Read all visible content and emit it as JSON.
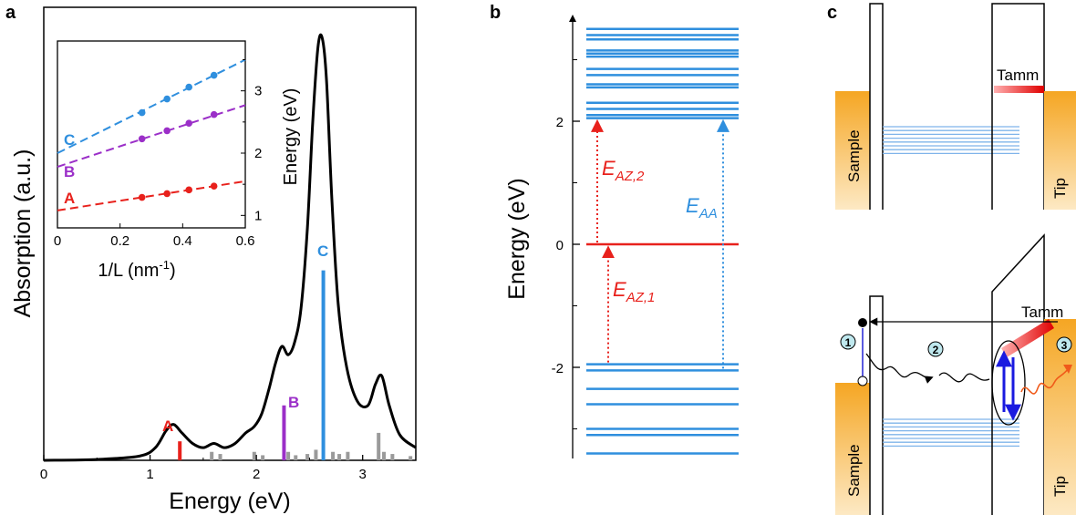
{
  "panels": {
    "a": "a",
    "b": "b",
    "c": "c"
  },
  "chart_data": [
    {
      "type": "line",
      "id": "absorption",
      "xlabel": "Energy (eV)",
      "ylabel": "Absorption (a.u.)",
      "xlim": [
        0,
        3.5
      ],
      "ylim": [
        0,
        1
      ],
      "xticks": [
        "0",
        "1",
        "2",
        "3"
      ],
      "spectrum": {
        "x": [
          0,
          0.5,
          0.9,
          1.05,
          1.15,
          1.22,
          1.3,
          1.4,
          1.5,
          1.6,
          1.7,
          1.8,
          1.9,
          1.98,
          2.05,
          2.12,
          2.18,
          2.24,
          2.3,
          2.36,
          2.42,
          2.48,
          2.53,
          2.58,
          2.62,
          2.66,
          2.71,
          2.77,
          2.85,
          2.95,
          3.05,
          3.12,
          3.18,
          3.25,
          3.35,
          3.5
        ],
        "y": [
          0,
          0.002,
          0.01,
          0.03,
          0.07,
          0.085,
          0.065,
          0.04,
          0.03,
          0.04,
          0.03,
          0.04,
          0.065,
          0.08,
          0.11,
          0.17,
          0.23,
          0.27,
          0.25,
          0.28,
          0.36,
          0.55,
          0.8,
          0.98,
          1.0,
          0.9,
          0.62,
          0.37,
          0.22,
          0.14,
          0.13,
          0.18,
          0.2,
          0.13,
          0.06,
          0.03
        ]
      },
      "sticks": [
        {
          "label": "A",
          "x": 1.28,
          "h": 0.045,
          "color": "#e8211c"
        },
        {
          "label": "B",
          "x": 2.26,
          "h": 0.13,
          "color": "#9b2fc8"
        },
        {
          "label": "C",
          "x": 2.63,
          "h": 0.45,
          "color": "#2f8fde"
        }
      ],
      "gray_sticks": [
        [
          1.58,
          0.02
        ],
        [
          1.66,
          0.015
        ],
        [
          1.98,
          0.02
        ],
        [
          2.06,
          0.012
        ],
        [
          2.3,
          0.02
        ],
        [
          2.37,
          0.012
        ],
        [
          2.48,
          0.015
        ],
        [
          2.56,
          0.025
        ],
        [
          2.72,
          0.02
        ],
        [
          2.78,
          0.015
        ],
        [
          2.86,
          0.02
        ],
        [
          3.15,
          0.065
        ],
        [
          3.2,
          0.02
        ],
        [
          3.28,
          0.015
        ],
        [
          3.45,
          0.01
        ]
      ]
    },
    {
      "type": "scatter",
      "id": "inset",
      "xlabel": "1/L (nm",
      "xlabel_sup": "-1",
      "xlabel_end": ")",
      "ylabel": "Energy (eV)",
      "xlim": [
        0,
        0.6
      ],
      "ylim": [
        0.8,
        3.8
      ],
      "xticks": [
        "0",
        "0.2",
        "0.4",
        "0.6"
      ],
      "yticks": [
        "1",
        "2",
        "3"
      ],
      "series": [
        {
          "name": "C",
          "color": "#2f8fde",
          "fit": [
            2.0,
            2.5
          ],
          "x": [
            0.27,
            0.35,
            0.42,
            0.5
          ],
          "y": [
            2.65,
            2.87,
            3.06,
            3.25
          ]
        },
        {
          "name": "B",
          "color": "#9b2fc8",
          "fit": [
            1.78,
            1.65
          ],
          "x": [
            0.27,
            0.35,
            0.42,
            0.5
          ],
          "y": [
            2.23,
            2.36,
            2.48,
            2.62
          ]
        },
        {
          "name": "A",
          "color": "#e8211c",
          "fit": [
            1.08,
            0.78
          ],
          "x": [
            0.27,
            0.35,
            0.42,
            0.5
          ],
          "y": [
            1.29,
            1.35,
            1.41,
            1.47
          ]
        }
      ]
    },
    {
      "type": "line",
      "id": "levels",
      "ylabel": "Energy (eV)",
      "ylim": [
        -3.5,
        3.5
      ],
      "yticks": [
        "-2",
        "0",
        "2"
      ],
      "levels": [
        3.5,
        3.4,
        3.33,
        3.15,
        3.1,
        3.05,
        2.85,
        2.75,
        2.6,
        2.55,
        2.3,
        2.2,
        2.1,
        2.05,
        -1.95,
        -2.05,
        -2.35,
        -2.6,
        -3.0,
        -3.1,
        -3.4
      ],
      "fermi": 0,
      "annotations": {
        "eaz2_main": "E",
        "eaz2_sub": "AZ,2",
        "eaz1_main": "E",
        "eaz1_sub": "AZ,1",
        "eaa_main": "E",
        "eaa_sub": "AA"
      }
    }
  ],
  "schematic": {
    "sample": "Sample",
    "tip": "Tip",
    "tamm_top": "Tamm",
    "tamm_bottom": "Tamm",
    "steps": [
      "1",
      "2",
      "3"
    ]
  }
}
